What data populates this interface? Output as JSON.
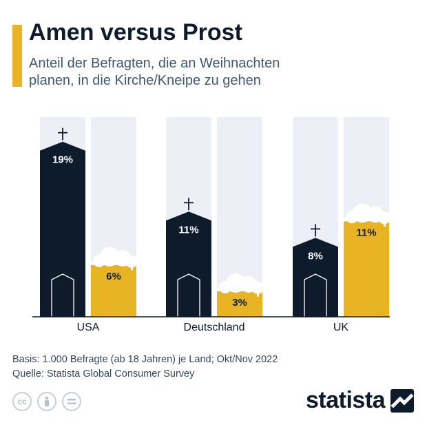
{
  "title": "Amen versus Prost",
  "subtitle": "Anteil der Befragten, die an Weihnachten planen, in die Kirche/Kneipe zu gehen",
  "footer": {
    "basis": "Basis: 1.000 Befragte (ab 18 Jahren) je Land; Okt/Nov 2022",
    "source": "Quelle: Statista Global Consumer Survey"
  },
  "brand": {
    "name": "statista"
  },
  "icons": [
    "cc-icon",
    "person-icon",
    "equals-icon",
    "statista-logo-icon",
    "cross-icon",
    "church-door-icon",
    "beer-foam-icon"
  ],
  "colors": {
    "church": "#0D1B2C",
    "beer": "#E9B424",
    "column_background": "#ECF0F6",
    "foam": "#FFFFFF"
  },
  "chart_data": {
    "type": "bar",
    "categories": [
      "USA",
      "Deutschland",
      "UK"
    ],
    "series": [
      {
        "values": [
          19,
          11,
          8
        ]
      },
      {
        "values": [
          6,
          3,
          11
        ]
      }
    ],
    "value_suffix": "%",
    "data_labels": [
      [
        "19%",
        "11%",
        "8%"
      ],
      [
        "6%",
        "3%",
        "11%"
      ]
    ],
    "ylim": [
      0,
      22
    ],
    "grid": false
  }
}
